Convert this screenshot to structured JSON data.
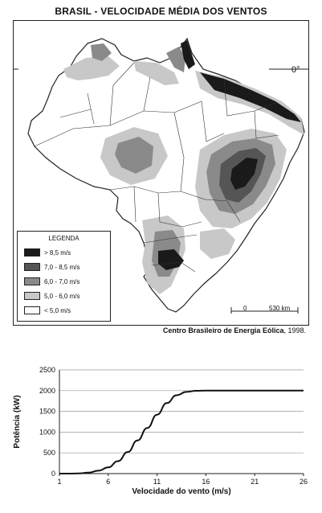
{
  "map": {
    "title": "BRASIL - VELOCIDADE MÉDIA DOS VENTOS",
    "equator_label": "0°",
    "legend": {
      "title": "LEGENDA",
      "items": [
        {
          "label": "> 8,5  m/s",
          "color": "#1a1a1a"
        },
        {
          "label": "7,0 - 8,5  m/s",
          "color": "#555555"
        },
        {
          "label": "6,0 - 7,0  m/s",
          "color": "#8a8a8a"
        },
        {
          "label": "5,0 - 6,0  m/s",
          "color": "#c8c8c8"
        },
        {
          "label": "< 5,0 m/s",
          "color": "#ffffff"
        }
      ]
    },
    "scale": {
      "zero": "0",
      "label": "530 km"
    },
    "source": {
      "name": "Centro Brasileiro de Energia Eólica",
      "year": ", 1998."
    }
  },
  "chart_data": {
    "type": "line",
    "xlabel": "Velocidade do vento (m/s)",
    "ylabel": "Potência (kW)",
    "xticks": [
      1,
      6,
      11,
      16,
      21,
      26
    ],
    "yticks": [
      0,
      500,
      1000,
      1500,
      2000,
      2500
    ],
    "xlim": [
      1,
      26
    ],
    "ylim": [
      0,
      2500
    ],
    "grid": "horizontal",
    "series": [
      {
        "x": [
          1,
          2,
          3,
          4,
          5,
          6,
          7,
          8,
          9,
          10,
          11,
          12,
          13,
          14,
          15,
          16,
          18,
          21,
          26
        ],
        "y": [
          0,
          0,
          5,
          25,
          70,
          150,
          300,
          520,
          800,
          1100,
          1420,
          1700,
          1890,
          1970,
          1995,
          2000,
          2000,
          2000,
          2000
        ]
      }
    ]
  }
}
